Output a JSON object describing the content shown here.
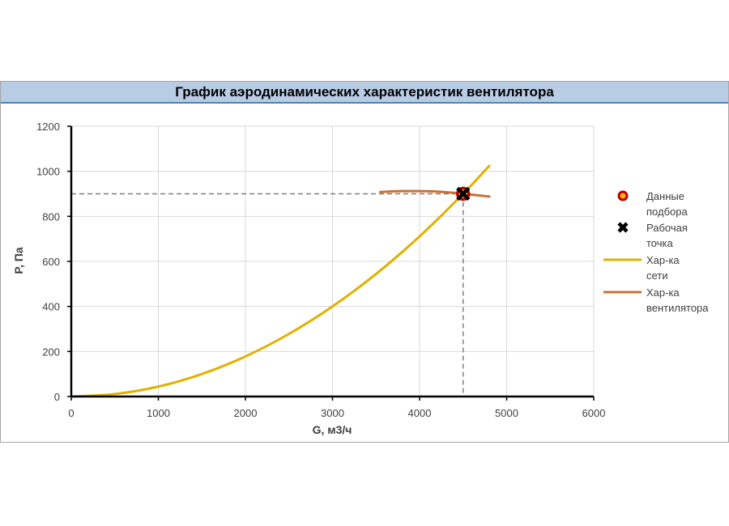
{
  "chart_data": {
    "type": "line",
    "title": "График аэродинамических характеристик вентилятора",
    "xlabel": "G, м3/ч",
    "ylabel": "P, Па",
    "xlim": [
      0,
      6000
    ],
    "ylim": [
      0,
      1200
    ],
    "x_ticks": [
      0,
      1000,
      2000,
      3000,
      4000,
      5000,
      6000
    ],
    "y_ticks": [
      0,
      200,
      400,
      600,
      800,
      1000,
      1200
    ],
    "grid": true,
    "legend_position": "right",
    "series": [
      {
        "name": "Данные подбора",
        "kind": "marker",
        "marker": "circle",
        "color": "#c00000",
        "fill": "#f2b600",
        "points": [
          [
            4500,
            900
          ]
        ]
      },
      {
        "name": "Рабочая точка",
        "kind": "marker",
        "marker": "x",
        "color": "#000000",
        "points": [
          [
            4500,
            900
          ]
        ]
      },
      {
        "name": "Хар-ка сети",
        "kind": "line",
        "color": "#e1b100",
        "x": [
          0,
          500,
          1000,
          1500,
          2000,
          2500,
          3000,
          3500,
          4000,
          4500,
          4800
        ],
        "y": [
          0,
          11,
          44,
          100,
          178,
          278,
          400,
          544,
          711,
          900,
          1024
        ]
      },
      {
        "name": "Хар-ка вентилятора",
        "kind": "line",
        "color": "#c87137",
        "x": [
          3550,
          3800,
          4000,
          4200,
          4400,
          4500,
          4600,
          4800
        ],
        "y": [
          908,
          912,
          912,
          910,
          904,
          900,
          896,
          888
        ]
      }
    ],
    "reference_lines": {
      "x": 4500,
      "y": 900,
      "color": "#7f7f7f",
      "style": "dashed"
    }
  }
}
